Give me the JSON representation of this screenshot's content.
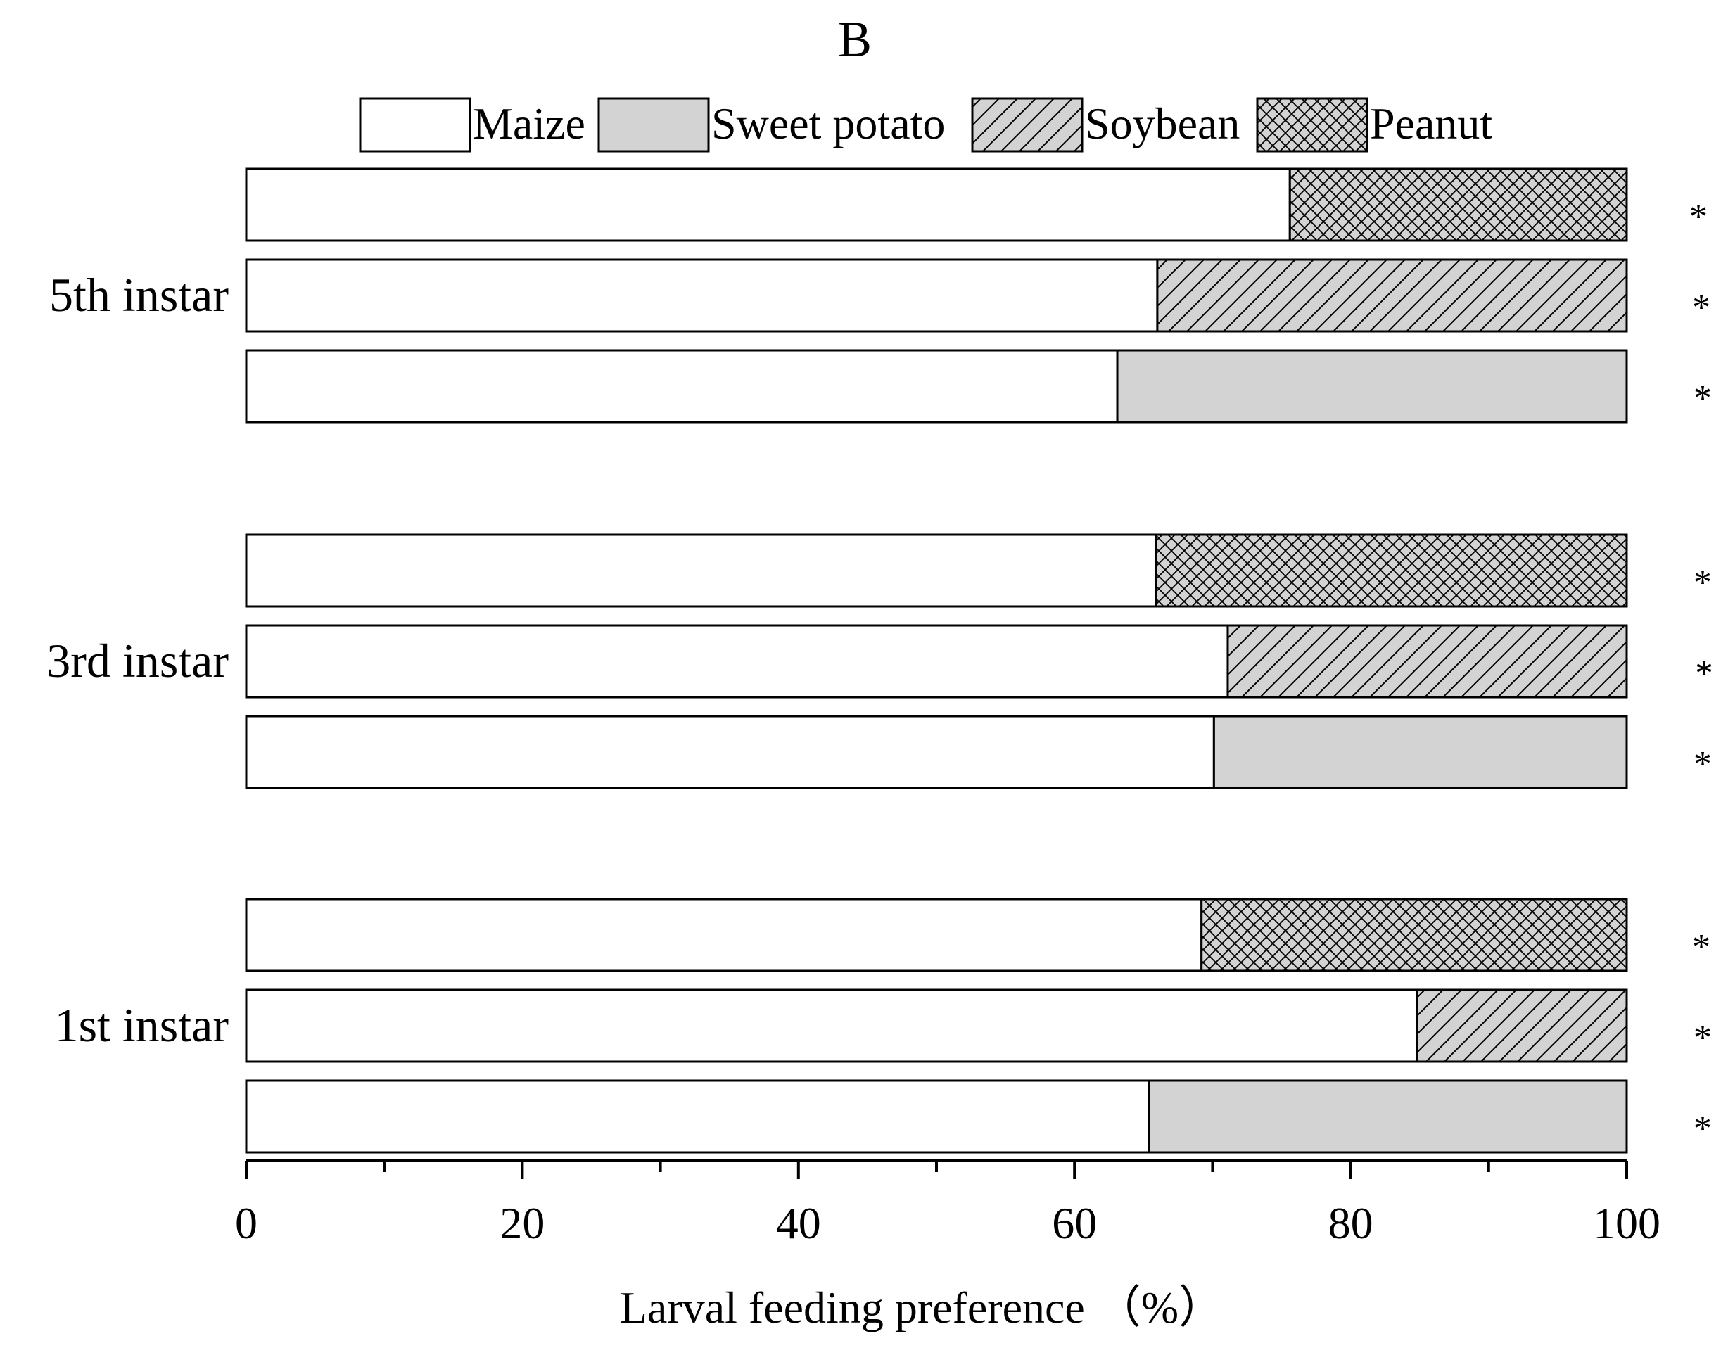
{
  "chart_data": {
    "type": "bar",
    "orientation": "horizontal",
    "stacked": true,
    "title": "B",
    "xlabel": "Larval feeding preference （%）",
    "xlim": [
      0,
      100
    ],
    "xticks": [
      0,
      20,
      40,
      60,
      80,
      100
    ],
    "legend": [
      {
        "name": "Maize",
        "fill": "#ffffff",
        "pattern": "none"
      },
      {
        "name": "Sweet potato",
        "fill": "#d3d3d3",
        "pattern": "none"
      },
      {
        "name": "Soybean",
        "fill": "#d3d3d3",
        "pattern": "diagonal"
      },
      {
        "name": "Peanut",
        "fill": "#d3d3d3",
        "pattern": "crosshatch"
      }
    ],
    "groups": [
      {
        "label": "5th instar",
        "bars": [
          {
            "pair": [
              "Maize",
              "Peanut"
            ],
            "maize": 75.6,
            "other": 24.4,
            "sig": "*"
          },
          {
            "pair": [
              "Maize",
              "Soybean"
            ],
            "maize": 66.0,
            "other": 34.0,
            "sig": "*"
          },
          {
            "pair": [
              "Maize",
              "Sweet potato"
            ],
            "maize": 63.1,
            "other": 36.9,
            "sig": "*"
          }
        ]
      },
      {
        "label": "3rd instar",
        "bars": [
          {
            "pair": [
              "Maize",
              "Peanut"
            ],
            "maize": 65.9,
            "other": 34.1,
            "sig": "*"
          },
          {
            "pair": [
              "Maize",
              "Soybean"
            ],
            "maize": 71.1,
            "other": 28.9,
            "sig": "*"
          },
          {
            "pair": [
              "Maize",
              "Sweet potato"
            ],
            "maize": 70.1,
            "other": 29.9,
            "sig": "*"
          }
        ]
      },
      {
        "label": "1st instar",
        "bars": [
          {
            "pair": [
              "Maize",
              "Peanut"
            ],
            "maize": 69.2,
            "other": 30.8,
            "sig": "*"
          },
          {
            "pair": [
              "Maize",
              "Soybean"
            ],
            "maize": 84.8,
            "other": 15.2,
            "sig": "*"
          },
          {
            "pair": [
              "Maize",
              "Sweet potato"
            ],
            "maize": 65.4,
            "other": 34.6,
            "sig": "*"
          }
        ]
      }
    ]
  }
}
